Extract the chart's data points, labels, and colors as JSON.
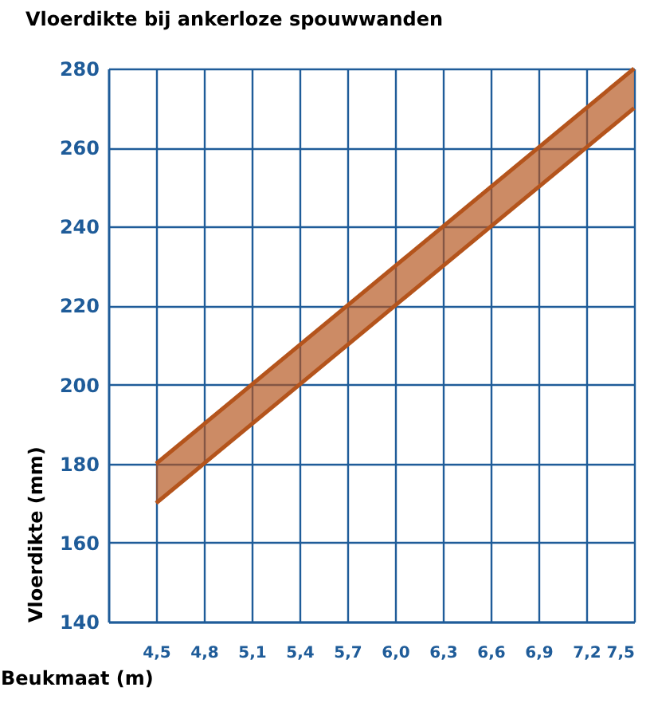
{
  "chart_data": {
    "type": "line",
    "title": "Vloerdikte bij ankerloze spouwwanden",
    "xlabel": "Beukmaat (m)",
    "ylabel": "Vloerdikte (mm)",
    "x": [
      4.5,
      7.5
    ],
    "series": [
      {
        "color": "#b4541c",
        "values": [
          180,
          280
        ],
        "lower": [
          170,
          270
        ],
        "upper": [
          180,
          280
        ]
      },
      {
        "color": "#b4541c",
        "values": [
          170,
          270
        ]
      }
    ],
    "xlim": [
      4.2,
      7.5
    ],
    "xticks": [
      {
        "value": 4.5,
        "label": "4,5"
      },
      {
        "value": 4.8,
        "label": "4,8"
      },
      {
        "value": 5.1,
        "label": "5,1"
      },
      {
        "value": 5.4,
        "label": "5,4"
      },
      {
        "value": 5.7,
        "label": "5,7"
      },
      {
        "value": 6.0,
        "label": "6,0"
      },
      {
        "value": 6.3,
        "label": "6,3"
      },
      {
        "value": 6.6,
        "label": "6,6"
      },
      {
        "value": 6.9,
        "label": "6,9"
      },
      {
        "value": 7.2,
        "label": "7,2"
      },
      {
        "value": 7.5,
        "label": "7,5"
      }
    ],
    "ylim": [
      140,
      280
    ],
    "yticks": [
      140,
      160,
      180,
      200,
      220,
      240,
      260,
      280
    ],
    "grid": true,
    "marker": "none",
    "line_style": "solid"
  }
}
